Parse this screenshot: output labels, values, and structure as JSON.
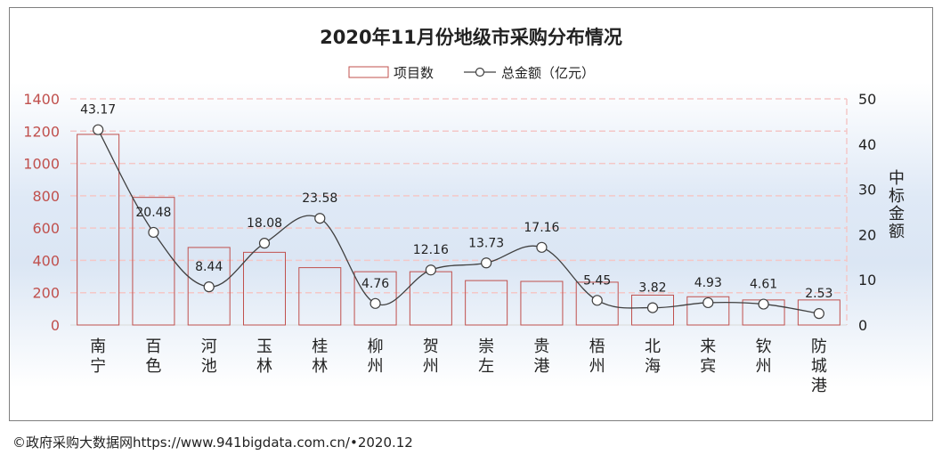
{
  "chart_data": {
    "type": "bar+line",
    "title": "2020年11月份地级市采购分布情况",
    "categories": [
      "南宁",
      "百色",
      "河池",
      "玉林",
      "桂林",
      "柳州",
      "贺州",
      "崇左",
      "贵港",
      "梧州",
      "北海",
      "来宾",
      "钦州",
      "防城港"
    ],
    "series": [
      {
        "name": "项目数",
        "type": "bar",
        "axis": "left",
        "values": [
          1180,
          790,
          480,
          450,
          355,
          330,
          330,
          275,
          270,
          265,
          185,
          175,
          155,
          155
        ]
      },
      {
        "name": "总金额（亿元）",
        "type": "line",
        "axis": "right",
        "values": [
          43.17,
          20.48,
          8.44,
          18.08,
          23.58,
          4.76,
          12.16,
          13.73,
          17.16,
          5.45,
          3.82,
          4.93,
          4.61,
          2.53
        ],
        "labels": [
          "43.17",
          "20.48",
          "8.44",
          "18.08",
          "23.58",
          "4.76",
          "12.16",
          "13.73",
          "17.16",
          "5.45",
          "3.82",
          "4.93",
          "4.61",
          "2.53"
        ]
      }
    ],
    "y_left": {
      "ylim": [
        0,
        1400
      ],
      "ticks": [
        "0",
        "200",
        "400",
        "600",
        "800",
        "1000",
        "1200",
        "1400"
      ]
    },
    "y_right": {
      "ylim": [
        0,
        50
      ],
      "ticks": [
        "0",
        "10",
        "20",
        "30",
        "40",
        "50"
      ],
      "label": "中标金额"
    },
    "legend": {
      "placement": "top-center"
    },
    "grid": true,
    "colors": {
      "bar_border": "#c0504d",
      "line": "#404040",
      "left_axis_text": "#c0504d",
      "grid": "#f4c7c7",
      "text": "#222222"
    }
  },
  "footer": "©政府采购大数据网https://www.941bigdata.com.cn/•2020.12"
}
